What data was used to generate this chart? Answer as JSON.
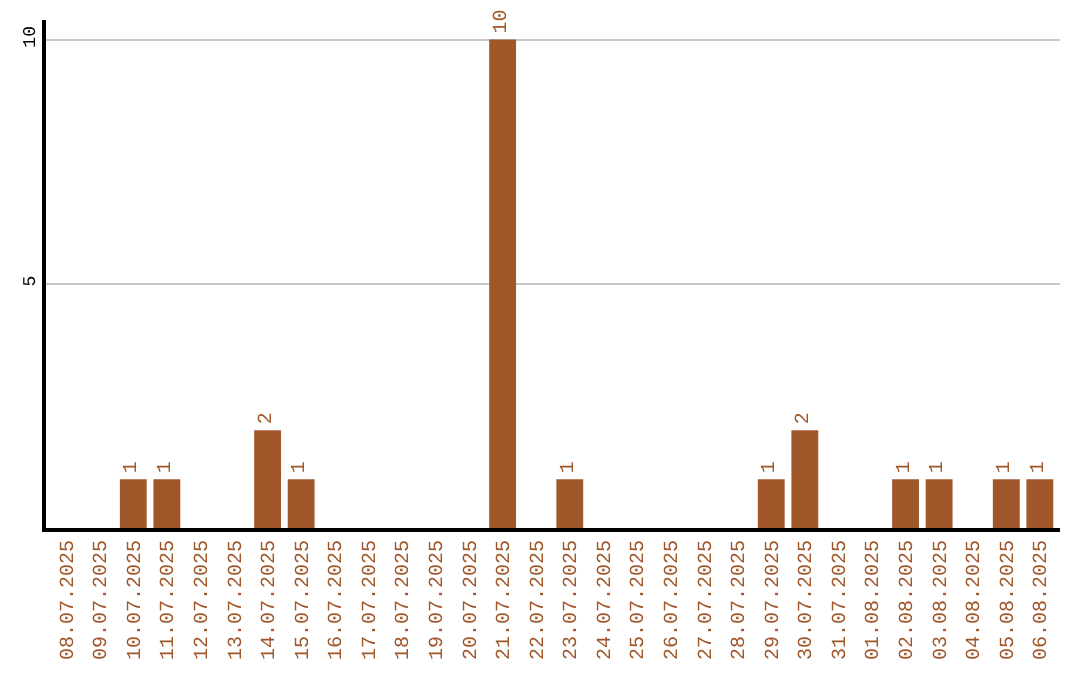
{
  "chart_data": {
    "type": "bar",
    "categories": [
      "08.07.2025",
      "09.07.2025",
      "10.07.2025",
      "11.07.2025",
      "12.07.2025",
      "13.07.2025",
      "14.07.2025",
      "15.07.2025",
      "16.07.2025",
      "17.07.2025",
      "18.07.2025",
      "19.07.2025",
      "20.07.2025",
      "21.07.2025",
      "22.07.2025",
      "23.07.2025",
      "24.07.2025",
      "25.07.2025",
      "26.07.2025",
      "27.07.2025",
      "28.07.2025",
      "29.07.2025",
      "30.07.2025",
      "31.07.2025",
      "01.08.2025",
      "02.08.2025",
      "03.08.2025",
      "04.08.2025",
      "05.08.2025",
      "06.08.2025"
    ],
    "values": [
      0,
      0,
      1,
      1,
      0,
      0,
      2,
      1,
      0,
      0,
      0,
      0,
      0,
      10,
      0,
      1,
      0,
      0,
      0,
      0,
      0,
      1,
      2,
      0,
      0,
      1,
      1,
      0,
      1,
      1
    ],
    "value_labels": [
      null,
      null,
      "1",
      "1",
      null,
      null,
      "2",
      "1",
      null,
      null,
      null,
      null,
      null,
      "10",
      null,
      "1",
      null,
      null,
      null,
      null,
      null,
      "1",
      "2",
      null,
      null,
      "1",
      "1",
      null,
      "1",
      "1"
    ],
    "color": "#a0572a",
    "ylim": [
      0,
      10.4
    ],
    "yticks": [
      5,
      10
    ],
    "grid": "y",
    "legend": false
  }
}
